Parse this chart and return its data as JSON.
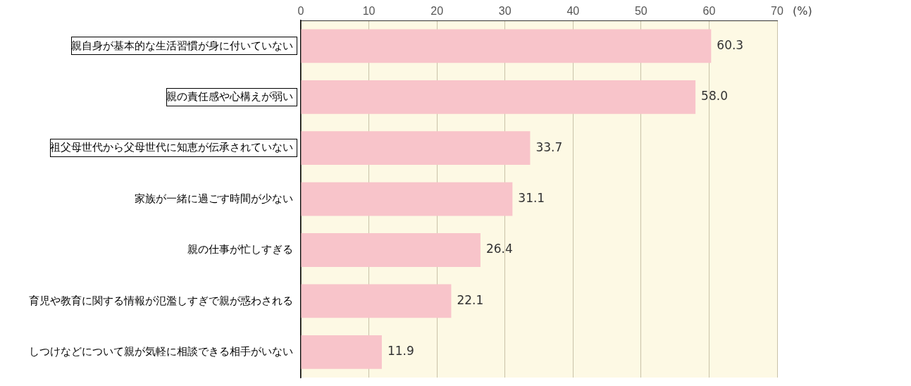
{
  "chart_data": {
    "type": "bar",
    "orientation": "horizontal",
    "xlabel": "(%)",
    "categories": [
      "親自身が基本的な生活習慣が身に付いていない",
      "親の責任感や心構えが弱い",
      "祖父母世代から父母世代に知恵が伝承されていない",
      "家族が一緒に過ごす時間が少ない",
      "親の仕事が忙しすぎる",
      "育児や教育に関する情報が氾濫しすぎで親が惑わされる",
      "しつけなどについて親が気軽に相談できる相手がいない"
    ],
    "values": [
      60.3,
      58.0,
      33.7,
      31.1,
      26.4,
      22.1,
      11.9
    ],
    "value_labels": [
      "60.3",
      "58.0",
      "33.7",
      "31.1",
      "26.4",
      "22.1",
      "11.9"
    ],
    "color": "#f8c4ca",
    "xlim": [
      0,
      70
    ],
    "xticks": [
      0,
      10,
      20,
      30,
      40,
      50,
      60,
      70
    ],
    "grid": "x"
  }
}
